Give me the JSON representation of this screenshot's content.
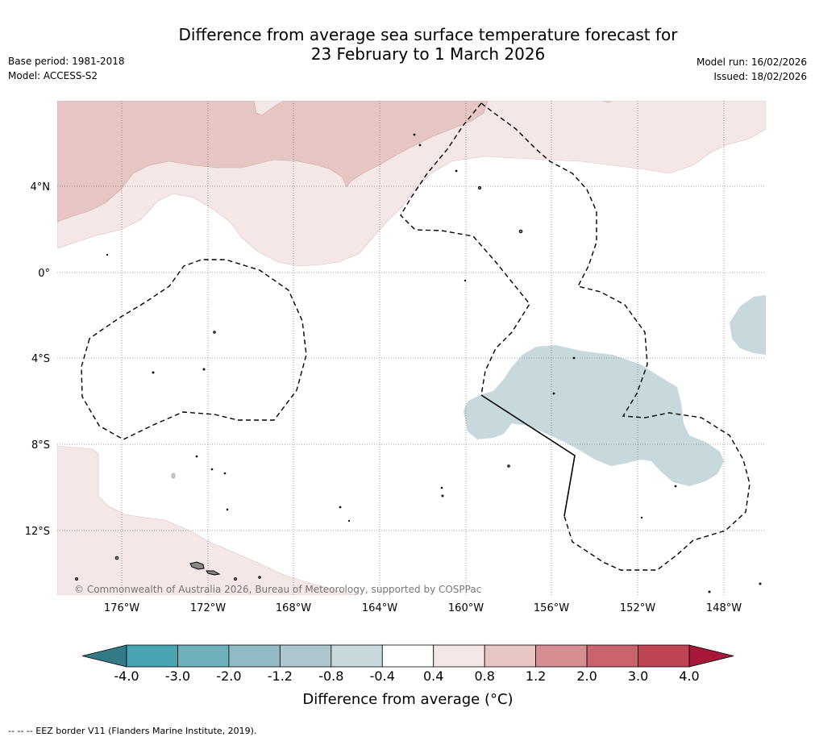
{
  "title": {
    "line1": "Difference from average sea surface temperature forecast for",
    "line2": "23 February to 1 March 2026"
  },
  "meta": {
    "base_period": "Base period: 1981-2018",
    "model": "Model: ACCESS-S2",
    "model_run": "Model run: 16/02/2026",
    "issued": "Issued: 18/02/2026"
  },
  "map": {
    "lat_labels": [
      "4°N",
      "0°",
      "4°S",
      "8°S",
      "12°S"
    ],
    "lon_labels": [
      "176°W",
      "172°W",
      "168°W",
      "164°W",
      "160°W",
      "156°W",
      "152°W",
      "148°W"
    ],
    "copyright": "© Commonwealth of Australia 2026, Bureau of Meteorology, supported by COSPPac"
  },
  "colorbar": {
    "ticks": [
      "-4.0",
      "-3.0",
      "-2.0",
      "-1.2",
      "-0.8",
      "-0.4",
      "0.4",
      "0.8",
      "1.2",
      "2.0",
      "3.0",
      "4.0"
    ],
    "colors": [
      "#4aa3b3",
      "#6fb0bd",
      "#91bac4",
      "#abc6cc",
      "#c7d9dd",
      "#ffffff",
      "#f5e7e6",
      "#e6c5c2",
      "#d68e93",
      "#c9646f",
      "#bf4452"
    ],
    "under_color": "#317a86",
    "over_color": "#a8173a",
    "label": "Difference from average (°C)"
  },
  "footer": {
    "eez_note": "--  --  -- EEZ border V11 (Flanders Marine Institute, 2019)."
  }
}
